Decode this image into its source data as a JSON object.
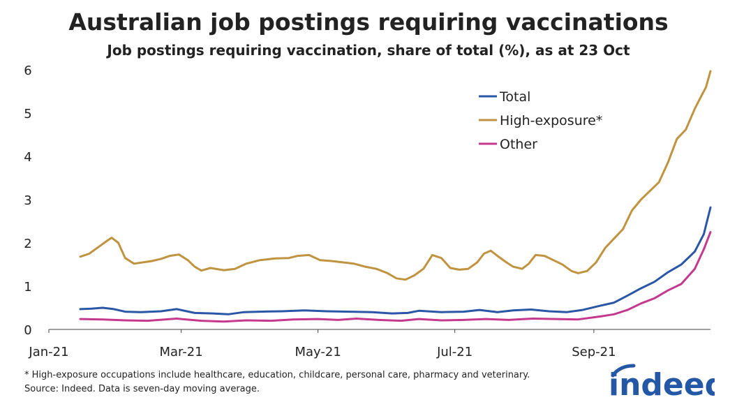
{
  "title": "Australian job postings requiring vaccinations",
  "subtitle": "Job postings requiring vaccination, share of total (%), as at 23 Oct",
  "footnote": "* High-exposure occupations include healthcare, education, childcare, personal care, pharmacy and veterinary.",
  "source": "Source: Indeed. Data is seven-day moving average.",
  "logo_text": "indeed",
  "colors": {
    "total": "#2a56a6",
    "high_exposure": "#bf9340",
    "other": "#c4398d",
    "indeed_blue": "#2557a7"
  },
  "chart_data": {
    "type": "line",
    "title": "Australian job postings requiring vaccinations",
    "subtitle": "Job postings requiring vaccination, share of total (%), as at 23 Oct",
    "xlabel": "",
    "ylabel": "",
    "xlim": [
      "2021-01-01",
      "2021-10-23"
    ],
    "ylim": [
      0,
      6
    ],
    "yticks": [
      0,
      1,
      2,
      3,
      4,
      5,
      6
    ],
    "xticks": [
      {
        "date": "2021-01-01",
        "label": "Jan-21"
      },
      {
        "date": "2021-03-01",
        "label": "Mar-21"
      },
      {
        "date": "2021-05-01",
        "label": "May-21"
      },
      {
        "date": "2021-07-01",
        "label": "Jul-21"
      },
      {
        "date": "2021-09-01",
        "label": "Sep-21"
      }
    ],
    "grid": false,
    "legend": "top-right",
    "series": [
      {
        "name": "Total",
        "color": "#2a56a6",
        "points": [
          [
            "2021-01-15",
            0.47
          ],
          [
            "2021-01-20",
            0.48
          ],
          [
            "2021-01-25",
            0.5
          ],
          [
            "2021-01-30",
            0.47
          ],
          [
            "2021-02-04",
            0.41
          ],
          [
            "2021-02-11",
            0.4
          ],
          [
            "2021-02-20",
            0.42
          ],
          [
            "2021-02-27",
            0.47
          ],
          [
            "2021-03-07",
            0.38
          ],
          [
            "2021-03-15",
            0.37
          ],
          [
            "2021-03-22",
            0.35
          ],
          [
            "2021-03-29",
            0.4
          ],
          [
            "2021-04-05",
            0.41
          ],
          [
            "2021-04-15",
            0.42
          ],
          [
            "2021-04-25",
            0.44
          ],
          [
            "2021-05-05",
            0.42
          ],
          [
            "2021-05-15",
            0.41
          ],
          [
            "2021-05-25",
            0.4
          ],
          [
            "2021-06-03",
            0.37
          ],
          [
            "2021-06-10",
            0.38
          ],
          [
            "2021-06-15",
            0.43
          ],
          [
            "2021-06-25",
            0.4
          ],
          [
            "2021-07-05",
            0.41
          ],
          [
            "2021-07-12",
            0.45
          ],
          [
            "2021-07-20",
            0.4
          ],
          [
            "2021-07-27",
            0.44
          ],
          [
            "2021-08-04",
            0.46
          ],
          [
            "2021-08-12",
            0.42
          ],
          [
            "2021-08-20",
            0.4
          ],
          [
            "2021-08-27",
            0.45
          ],
          [
            "2021-09-04",
            0.55
          ],
          [
            "2021-09-10",
            0.62
          ],
          [
            "2021-09-16",
            0.78
          ],
          [
            "2021-09-22",
            0.95
          ],
          [
            "2021-09-28",
            1.1
          ],
          [
            "2021-10-04",
            1.32
          ],
          [
            "2021-10-10",
            1.5
          ],
          [
            "2021-10-16",
            1.8
          ],
          [
            "2021-10-20",
            2.2
          ],
          [
            "2021-10-23",
            2.82
          ]
        ]
      },
      {
        "name": "High-exposure*",
        "color": "#bf9340",
        "points": [
          [
            "2021-01-15",
            1.68
          ],
          [
            "2021-01-19",
            1.75
          ],
          [
            "2021-01-23",
            1.9
          ],
          [
            "2021-01-27",
            2.05
          ],
          [
            "2021-01-29",
            2.12
          ],
          [
            "2021-02-01",
            2.0
          ],
          [
            "2021-02-04",
            1.65
          ],
          [
            "2021-02-08",
            1.52
          ],
          [
            "2021-02-12",
            1.55
          ],
          [
            "2021-02-16",
            1.58
          ],
          [
            "2021-02-20",
            1.63
          ],
          [
            "2021-02-24",
            1.7
          ],
          [
            "2021-02-28",
            1.73
          ],
          [
            "2021-03-04",
            1.6
          ],
          [
            "2021-03-07",
            1.45
          ],
          [
            "2021-03-10",
            1.36
          ],
          [
            "2021-03-14",
            1.42
          ],
          [
            "2021-03-20",
            1.37
          ],
          [
            "2021-03-25",
            1.4
          ],
          [
            "2021-03-30",
            1.52
          ],
          [
            "2021-04-05",
            1.6
          ],
          [
            "2021-04-12",
            1.64
          ],
          [
            "2021-04-18",
            1.65
          ],
          [
            "2021-04-22",
            1.7
          ],
          [
            "2021-04-27",
            1.72
          ],
          [
            "2021-05-02",
            1.6
          ],
          [
            "2021-05-07",
            1.58
          ],
          [
            "2021-05-12",
            1.55
          ],
          [
            "2021-05-17",
            1.52
          ],
          [
            "2021-05-22",
            1.45
          ],
          [
            "2021-05-27",
            1.4
          ],
          [
            "2021-06-01",
            1.3
          ],
          [
            "2021-06-05",
            1.18
          ],
          [
            "2021-06-09",
            1.15
          ],
          [
            "2021-06-13",
            1.25
          ],
          [
            "2021-06-17",
            1.4
          ],
          [
            "2021-06-21",
            1.72
          ],
          [
            "2021-06-25",
            1.65
          ],
          [
            "2021-06-29",
            1.42
          ],
          [
            "2021-07-03",
            1.38
          ],
          [
            "2021-07-07",
            1.4
          ],
          [
            "2021-07-11",
            1.55
          ],
          [
            "2021-07-14",
            1.75
          ],
          [
            "2021-07-17",
            1.82
          ],
          [
            "2021-07-20",
            1.7
          ],
          [
            "2021-07-24",
            1.55
          ],
          [
            "2021-07-27",
            1.45
          ],
          [
            "2021-07-31",
            1.4
          ],
          [
            "2021-08-03",
            1.52
          ],
          [
            "2021-08-06",
            1.72
          ],
          [
            "2021-08-10",
            1.7
          ],
          [
            "2021-08-14",
            1.6
          ],
          [
            "2021-08-18",
            1.5
          ],
          [
            "2021-08-22",
            1.35
          ],
          [
            "2021-08-25",
            1.3
          ],
          [
            "2021-08-29",
            1.35
          ],
          [
            "2021-09-02",
            1.55
          ],
          [
            "2021-09-06",
            1.88
          ],
          [
            "2021-09-10",
            2.1
          ],
          [
            "2021-09-14",
            2.32
          ],
          [
            "2021-09-18",
            2.75
          ],
          [
            "2021-09-22",
            3.0
          ],
          [
            "2021-09-26",
            3.2
          ],
          [
            "2021-09-30",
            3.4
          ],
          [
            "2021-10-04",
            3.85
          ],
          [
            "2021-10-08",
            4.4
          ],
          [
            "2021-10-12",
            4.62
          ],
          [
            "2021-10-16",
            5.1
          ],
          [
            "2021-10-19",
            5.4
          ],
          [
            "2021-10-21",
            5.6
          ],
          [
            "2021-10-23",
            5.97
          ]
        ]
      },
      {
        "name": "Other",
        "color": "#c4398d",
        "points": [
          [
            "2021-01-15",
            0.24
          ],
          [
            "2021-01-25",
            0.23
          ],
          [
            "2021-02-04",
            0.21
          ],
          [
            "2021-02-14",
            0.2
          ],
          [
            "2021-02-27",
            0.25
          ],
          [
            "2021-03-10",
            0.2
          ],
          [
            "2021-03-20",
            0.18
          ],
          [
            "2021-03-30",
            0.21
          ],
          [
            "2021-04-10",
            0.2
          ],
          [
            "2021-04-20",
            0.23
          ],
          [
            "2021-05-01",
            0.24
          ],
          [
            "2021-05-10",
            0.22
          ],
          [
            "2021-05-18",
            0.25
          ],
          [
            "2021-05-28",
            0.22
          ],
          [
            "2021-06-07",
            0.2
          ],
          [
            "2021-06-15",
            0.24
          ],
          [
            "2021-06-25",
            0.21
          ],
          [
            "2021-07-05",
            0.22
          ],
          [
            "2021-07-15",
            0.24
          ],
          [
            "2021-07-25",
            0.22
          ],
          [
            "2021-08-05",
            0.25
          ],
          [
            "2021-08-15",
            0.24
          ],
          [
            "2021-08-25",
            0.23
          ],
          [
            "2021-09-04",
            0.3
          ],
          [
            "2021-09-10",
            0.35
          ],
          [
            "2021-09-16",
            0.45
          ],
          [
            "2021-09-22",
            0.6
          ],
          [
            "2021-09-28",
            0.72
          ],
          [
            "2021-10-04",
            0.9
          ],
          [
            "2021-10-10",
            1.05
          ],
          [
            "2021-10-16",
            1.4
          ],
          [
            "2021-10-20",
            1.85
          ],
          [
            "2021-10-23",
            2.25
          ]
        ]
      }
    ]
  }
}
